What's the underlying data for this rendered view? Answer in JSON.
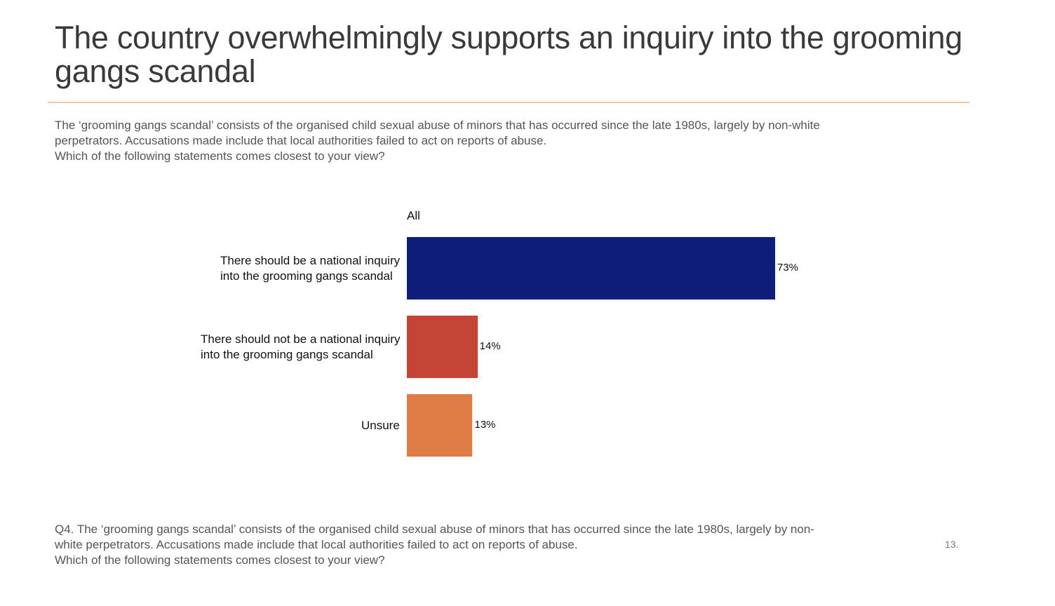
{
  "slide": {
    "title": "The country overwhelmingly supports an inquiry into the grooming gangs scandal",
    "intro_lines": [
      "The ‘grooming gangs scandal’ consists of the organised child sexual abuse of minors that has occurred since the late 1980s, largely by non-white",
      "perpetrators. Accusations made include that local authorities failed to act on reports of abuse.",
      "Which of the following statements comes closest to your view?"
    ],
    "footnote_lines": [
      "Q4. The ‘grooming gangs scandal’ consists of the organised child sexual abuse of minors that has occurred since the late 1980s, largely by non-",
      "white perpetrators. Accusations made include that local authorities failed to act on reports of abuse.",
      "Which of the following statements comes closest to your view?"
    ],
    "page_number": "13."
  },
  "chart_data": {
    "type": "bar",
    "orientation": "horizontal",
    "series_name": "All",
    "categories": [
      [
        "There should be a national inquiry",
        "into the grooming gangs scandal"
      ],
      [
        "There should not be a national inquiry",
        "into the grooming gangs scandal"
      ],
      [
        "Unsure"
      ]
    ],
    "values": [
      73,
      14,
      13
    ],
    "value_labels": [
      "73%",
      "14%",
      "13%"
    ],
    "colors": [
      "#0f1d7a",
      "#c44536",
      "#e07d47"
    ],
    "xlim": [
      0,
      100
    ],
    "grid": false
  }
}
